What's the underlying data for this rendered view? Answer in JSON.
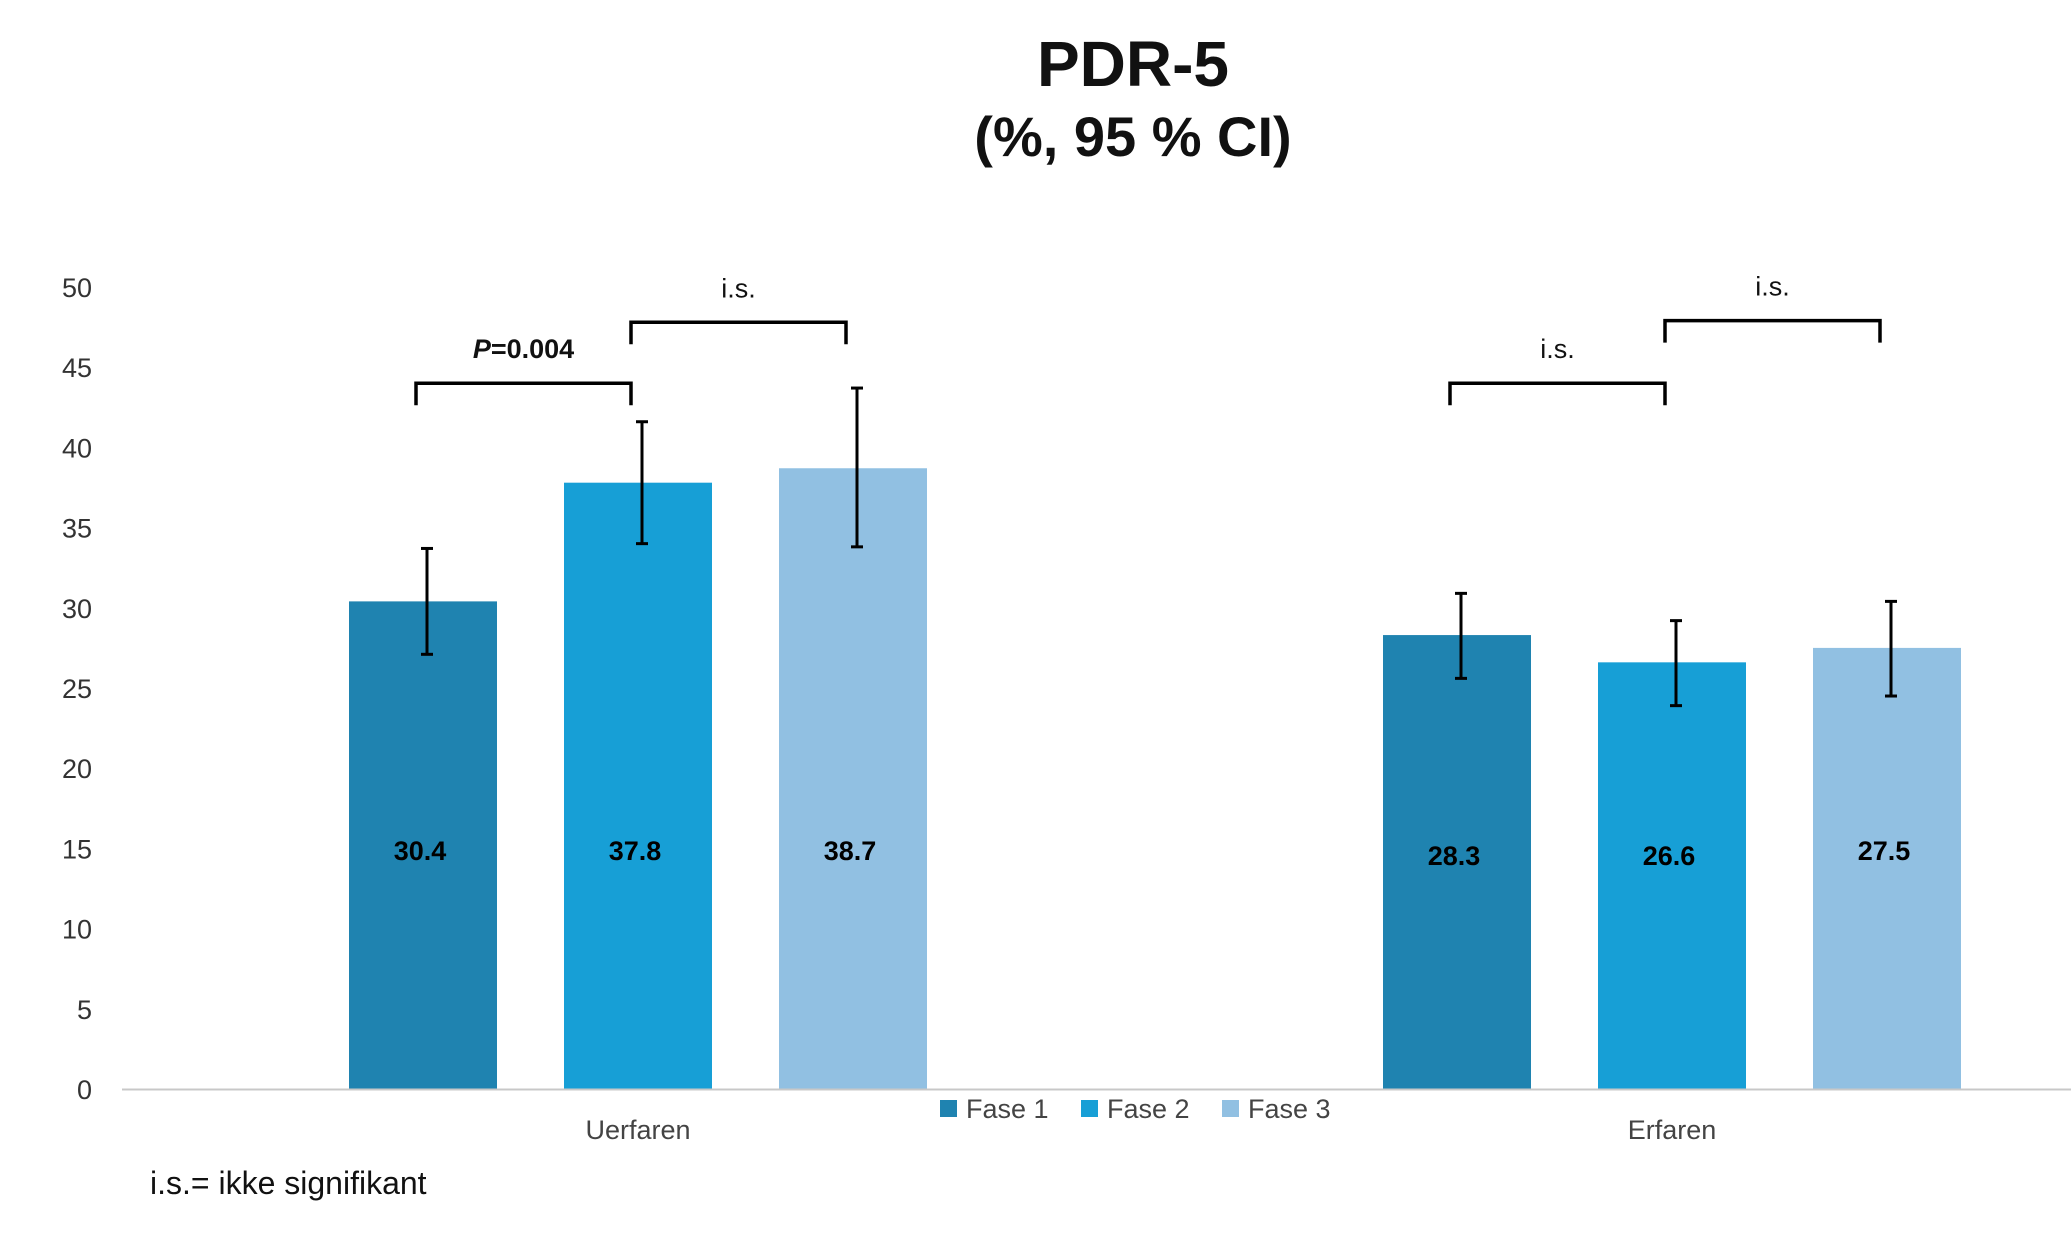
{
  "chart_data": {
    "type": "bar",
    "title": "PDR-5",
    "subtitle": "(%, 95 % CI)",
    "categories": [
      "Uerfaren",
      "Erfaren"
    ],
    "series": [
      {
        "name": "Fase 1",
        "color": "#1F83B0",
        "values": [
          30.4,
          28.3
        ],
        "ci_low": [
          27.1,
          25.6
        ],
        "ci_high": [
          33.7,
          30.9
        ]
      },
      {
        "name": "Fase 2",
        "color": "#179FD6",
        "values": [
          37.8,
          26.6
        ],
        "ci_low": [
          34.0,
          23.9
        ],
        "ci_high": [
          41.6,
          29.2
        ]
      },
      {
        "name": "Fase 3",
        "color": "#91C0E2",
        "values": [
          38.7,
          27.5
        ],
        "ci_low": [
          33.8,
          24.5
        ],
        "ci_high": [
          43.7,
          30.4
        ]
      }
    ],
    "data_labels": [
      [
        "30.4",
        "28.3"
      ],
      [
        "37.8",
        "26.6"
      ],
      [
        "38.7",
        "27.5"
      ]
    ],
    "ylim": [
      0,
      50
    ],
    "yticks": [
      0,
      5,
      10,
      15,
      20,
      25,
      30,
      35,
      40,
      45,
      50
    ],
    "ytick_labels": [
      "0",
      "5",
      "10",
      "15",
      "20",
      "25",
      "30",
      "35",
      "40",
      "45",
      "50"
    ],
    "xlabel": "",
    "ylabel": "",
    "legend_position": "bottom-center",
    "grid": false,
    "significance": [
      {
        "category": 0,
        "from_series": 0,
        "to_series": 1,
        "bracket_value": 44.0,
        "prefix": "P",
        "label": "=0.004",
        "bold": true
      },
      {
        "category": 0,
        "from_series": 1,
        "to_series": 2,
        "bracket_value": 47.8,
        "prefix": "",
        "label": "i.s.",
        "bold": false
      },
      {
        "category": 1,
        "from_series": 0,
        "to_series": 1,
        "bracket_value": 44.0,
        "prefix": "",
        "label": "i.s.",
        "bold": false
      },
      {
        "category": 1,
        "from_series": 1,
        "to_series": 2,
        "bracket_value": 47.9,
        "prefix": "",
        "label": "i.s.",
        "bold": false
      }
    ]
  },
  "footnote": "i.s.= ikke signifikant"
}
